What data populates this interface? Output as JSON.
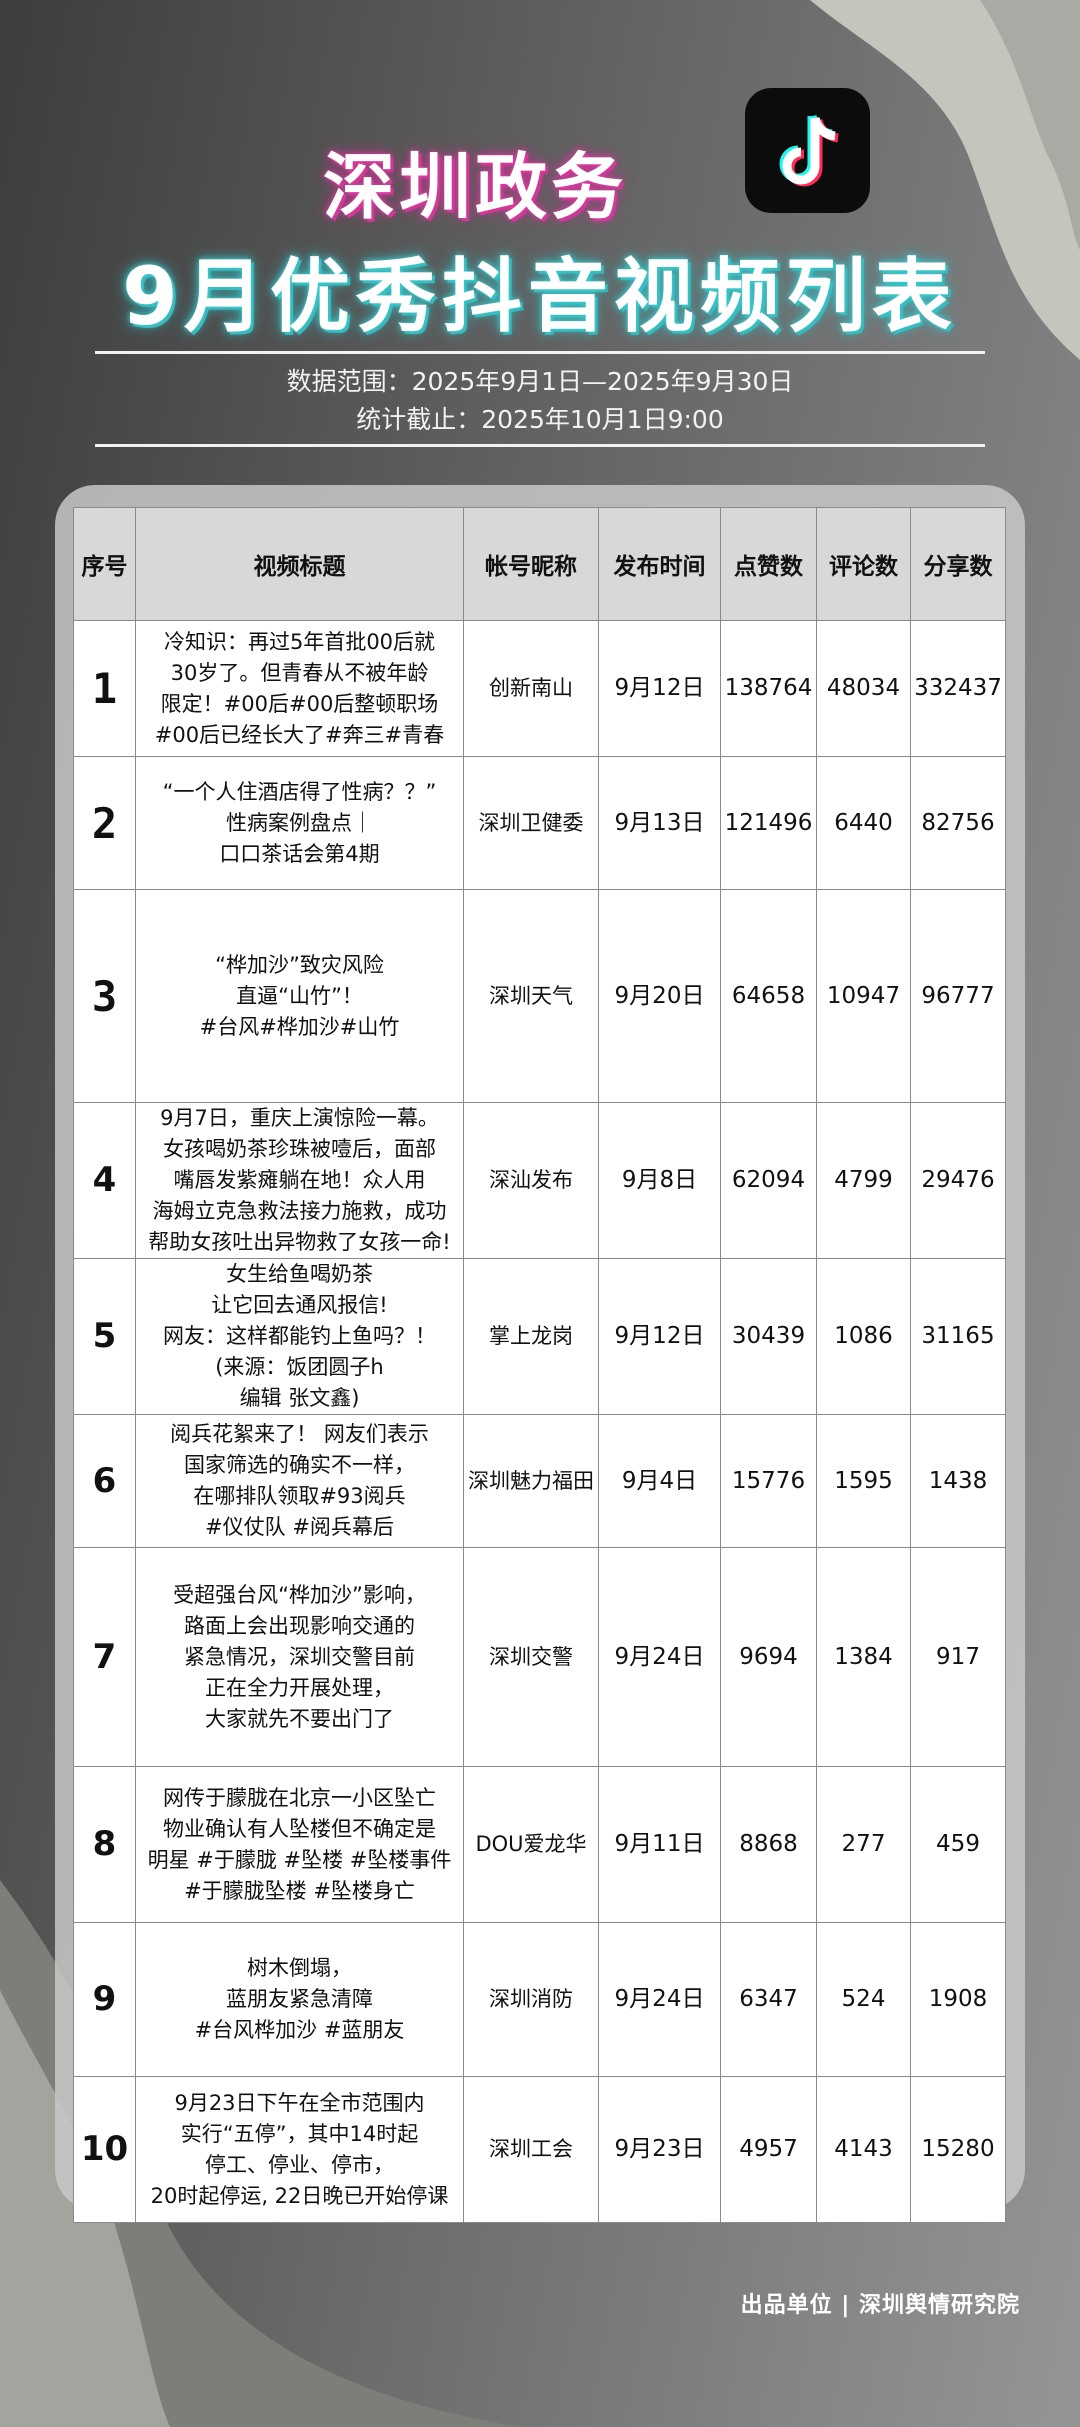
{
  "header": {
    "title_line1": "深圳政务",
    "title_line2": "9月优秀抖音视频列表",
    "data_range": "数据范围：2025年9月1日—2025年9月30日",
    "cutoff": "统计截止：2025年10月1日9:00",
    "logo_icon": "tiktok-logo-icon"
  },
  "table": {
    "columns": [
      "序号",
      "视频标题",
      "帐号昵称",
      "发布时间",
      "点赞数",
      "评论数",
      "分享数"
    ],
    "rows": [
      {
        "rank": "1",
        "title": [
          "冷知识：再过5年首批00后就",
          "30岁了。但青春从不被年龄",
          "限定！#00后#00后整顿职场",
          "#00后已经长大了#奔三#青春"
        ],
        "account": "创新南山",
        "date": "9月12日",
        "likes": "138764",
        "comments": "48034",
        "shares": "332437"
      },
      {
        "rank": "2",
        "title": [
          "“一个人住酒店得了性病？？”",
          "性病案例盘点｜",
          "口口茶话会第4期"
        ],
        "account": "深圳卫健委",
        "date": "9月13日",
        "likes": "121496",
        "comments": "6440",
        "shares": "82756"
      },
      {
        "rank": "3",
        "title": [
          "“桦加沙”致灾风险",
          "直逼“山竹”！",
          "#台风#桦加沙#山竹"
        ],
        "account": "深圳天气",
        "date": "9月20日",
        "likes": "64658",
        "comments": "10947",
        "shares": "96777"
      },
      {
        "rank": "4",
        "title": [
          "9月7日，重庆上演惊险一幕。",
          "女孩喝奶茶珍珠被噎后，面部",
          "嘴唇发紫瘫躺在地！众人用",
          "海姆立克急救法接力施救，成功",
          "帮助女孩吐出异物救了女孩一命!"
        ],
        "account": "深汕发布",
        "date": "9月8日",
        "likes": "62094",
        "comments": "4799",
        "shares": "29476"
      },
      {
        "rank": "5",
        "title": [
          "女生给鱼喝奶茶",
          "让它回去通风报信!",
          "网友：这样都能钓上鱼吗？！",
          "(来源：饭团圆子h",
          "编辑 张文鑫)"
        ],
        "account": "掌上龙岗",
        "date": "9月12日",
        "likes": "30439",
        "comments": "1086",
        "shares": "31165"
      },
      {
        "rank": "6",
        "title": [
          "阅兵花絮来了！ 网友们表示",
          "国家筛选的确实不一样，",
          "在哪排队领取#93阅兵",
          "#仪仗队 #阅兵幕后"
        ],
        "account": "深圳魅力福田",
        "date": "9月4日",
        "likes": "15776",
        "comments": "1595",
        "shares": "1438"
      },
      {
        "rank": "7",
        "title": [
          "受超强台风“桦加沙”影响，",
          "路面上会出现影响交通的",
          "紧急情况，深圳交警目前",
          "正在全力开展处理，",
          "大家就先不要出门了"
        ],
        "account": "深圳交警",
        "date": "9月24日",
        "likes": "9694",
        "comments": "1384",
        "shares": "917"
      },
      {
        "rank": "8",
        "title": [
          "网传于朦胧在北京一小区坠亡",
          "物业确认有人坠楼但不确定是",
          "明星 #于朦胧 #坠楼 #坠楼事件",
          "#于朦胧坠楼 #坠楼身亡"
        ],
        "account": "DOU爱龙华",
        "date": "9月11日",
        "likes": "8868",
        "comments": "277",
        "shares": "459"
      },
      {
        "rank": "9",
        "title": [
          "树木倒塌，",
          "蓝朋友紧急清障",
          "#台风桦加沙 #蓝朋友"
        ],
        "account": "深圳消防",
        "date": "9月24日",
        "likes": "6347",
        "comments": "524",
        "shares": "1908"
      },
      {
        "rank": "10",
        "title": [
          "9月23日下午在全市范围内",
          "实行“五停”，其中14时起",
          "停工、停业、停市，",
          "20时起停运, 22日晚已开始停课"
        ],
        "account": "深圳工会",
        "date": "9月23日",
        "likes": "4957",
        "comments": "4143",
        "shares": "15280"
      }
    ]
  },
  "footer": {
    "credit": "出品单位 | 深圳舆情研究院"
  }
}
